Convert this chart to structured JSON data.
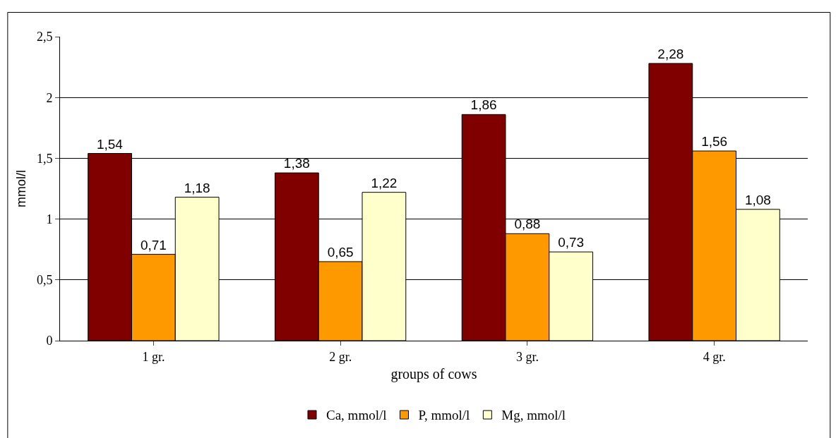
{
  "chart_data": {
    "type": "bar",
    "xlabel": "groups of cows",
    "ylabel": "mmol/l",
    "categories": [
      "1 gr.",
      "2 gr.",
      "3 gr.",
      "4 gr."
    ],
    "series": [
      {
        "name": "Ca, mmol/l",
        "color": "#800000",
        "values": [
          1.54,
          1.38,
          1.86,
          2.28
        ],
        "value_labels": [
          "1,54",
          "1,38",
          "1,86",
          "2,28"
        ]
      },
      {
        "name": "P, mmol/l",
        "color": "#ff9900",
        "values": [
          0.71,
          0.65,
          0.88,
          1.56
        ],
        "value_labels": [
          "0,71",
          "0,65",
          "0,88",
          "1,56"
        ]
      },
      {
        "name": "Mg, mmol/l",
        "color": "#ffffcc",
        "values": [
          1.18,
          1.22,
          0.73,
          1.08
        ],
        "value_labels": [
          "1,18",
          "1,22",
          "0,73",
          "1,08"
        ]
      }
    ],
    "ylim": [
      0,
      2.5
    ],
    "yticks": [
      0,
      {
        "value": 0.5,
        "label": "0,5"
      },
      1,
      {
        "value": 1.5,
        "label": "1,5"
      },
      2,
      {
        "value": 2.5,
        "label": "2,5"
      }
    ],
    "grid": "y",
    "legend": "bottom"
  }
}
